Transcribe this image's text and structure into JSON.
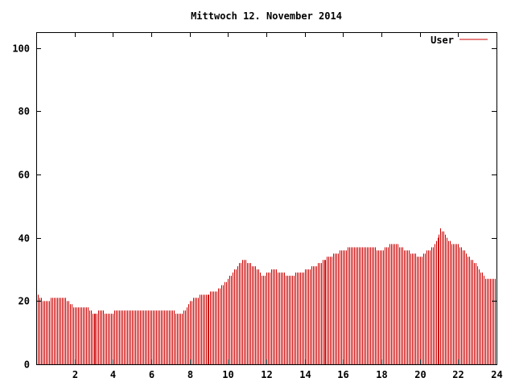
{
  "chart_data": {
    "type": "bar",
    "title": "Mittwoch 12. November 2014",
    "xlabel": "",
    "ylabel": "",
    "xlim": [
      0,
      24
    ],
    "ylim": [
      0,
      105
    ],
    "x_ticks": [
      {
        "value": 2,
        "label": "2"
      },
      {
        "value": 4,
        "label": "4"
      },
      {
        "value": 6,
        "label": "6"
      },
      {
        "value": 8,
        "label": "8"
      },
      {
        "value": 10,
        "label": "10"
      },
      {
        "value": 12,
        "label": "12"
      },
      {
        "value": 14,
        "label": "14"
      },
      {
        "value": 16,
        "label": "16"
      },
      {
        "value": 18,
        "label": "18"
      },
      {
        "value": 20,
        "label": "20"
      },
      {
        "value": 22,
        "label": "22"
      },
      {
        "value": 24,
        "label": "24"
      }
    ],
    "y_ticks": [
      {
        "value": 0,
        "label": "0"
      },
      {
        "value": 20,
        "label": "20"
      },
      {
        "value": 40,
        "label": "40"
      },
      {
        "value": 60,
        "label": "60"
      },
      {
        "value": 80,
        "label": "80"
      },
      {
        "value": 100,
        "label": "100"
      }
    ],
    "grid": false,
    "legend_position": "top-right",
    "series": [
      {
        "name": "User",
        "color": "#cc0000",
        "keyframes": [
          [
            0.0,
            22
          ],
          [
            0.4,
            20
          ],
          [
            1.0,
            21
          ],
          [
            1.5,
            21
          ],
          [
            1.9,
            18
          ],
          [
            2.6,
            18
          ],
          [
            3.0,
            16
          ],
          [
            3.4,
            17
          ],
          [
            3.8,
            15.5
          ],
          [
            4.2,
            17
          ],
          [
            5.0,
            17
          ],
          [
            6.0,
            17
          ],
          [
            6.8,
            17
          ],
          [
            7.6,
            16
          ],
          [
            8.0,
            20
          ],
          [
            8.6,
            22
          ],
          [
            9.4,
            23
          ],
          [
            10.0,
            27
          ],
          [
            10.5,
            31
          ],
          [
            10.8,
            33
          ],
          [
            11.4,
            31
          ],
          [
            11.8,
            28
          ],
          [
            12.3,
            30
          ],
          [
            13.2,
            28
          ],
          [
            13.8,
            29
          ],
          [
            14.5,
            31
          ],
          [
            15.0,
            33
          ],
          [
            15.6,
            35
          ],
          [
            16.0,
            36
          ],
          [
            16.5,
            37
          ],
          [
            17.0,
            37
          ],
          [
            17.5,
            37
          ],
          [
            18.0,
            36
          ],
          [
            18.6,
            38.5
          ],
          [
            19.0,
            37
          ],
          [
            19.6,
            35
          ],
          [
            20.0,
            34
          ],
          [
            20.4,
            36
          ],
          [
            20.8,
            38
          ],
          [
            21.1,
            43
          ],
          [
            21.6,
            38.5
          ],
          [
            22.0,
            38
          ],
          [
            22.4,
            35
          ],
          [
            22.9,
            32
          ],
          [
            23.3,
            28
          ],
          [
            23.6,
            26.5
          ],
          [
            24.0,
            27
          ]
        ]
      }
    ],
    "bar_interval_minutes": 5
  }
}
